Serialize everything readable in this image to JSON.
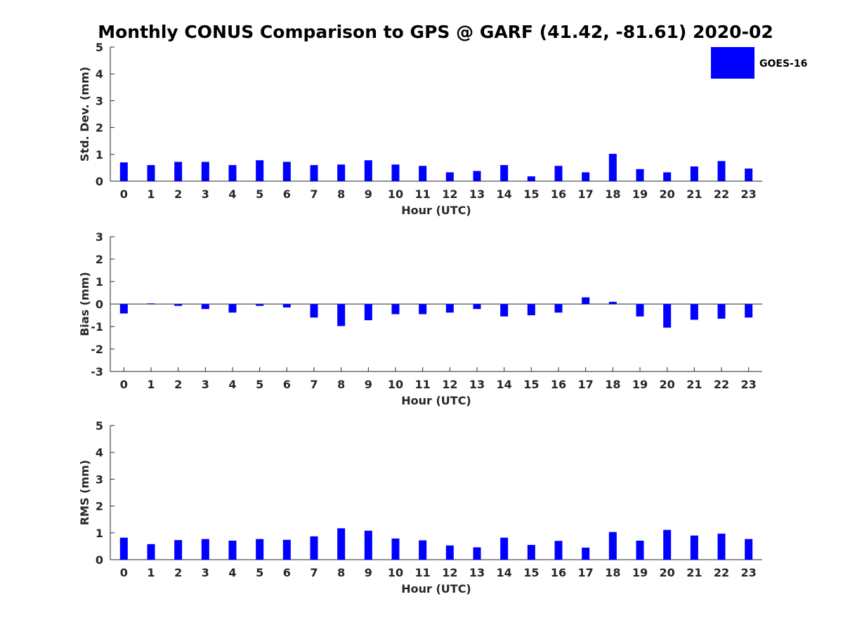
{
  "chart_data": {
    "title": "Monthly CONUS Comparison to GPS @ GARF (41.42, -81.61) 2020-02",
    "type": "bar",
    "color": "#0000ff",
    "legend": {
      "label": "GOES-16",
      "position": "top-right"
    },
    "panels": [
      {
        "id": "stddev",
        "type": "bar",
        "ylabel": "Std. Dev. (mm)",
        "xlabel": "Hour (UTC)",
        "ylim": [
          0,
          5
        ],
        "yticks": [
          0,
          1,
          2,
          3,
          4,
          5
        ],
        "categories": [
          "0",
          "1",
          "2",
          "3",
          "4",
          "5",
          "6",
          "7",
          "8",
          "9",
          "10",
          "11",
          "12",
          "13",
          "14",
          "15",
          "16",
          "17",
          "18",
          "19",
          "20",
          "21",
          "22",
          "23"
        ],
        "series": [
          {
            "name": "GOES-16",
            "values": [
              0.7,
              0.6,
              0.72,
              0.72,
              0.6,
              0.78,
              0.72,
              0.6,
              0.62,
              0.78,
              0.62,
              0.57,
              0.33,
              0.38,
              0.6,
              0.18,
              0.57,
              0.33,
              1.02,
              0.45,
              0.33,
              0.55,
              0.75,
              0.47
            ]
          }
        ]
      },
      {
        "id": "bias",
        "type": "bar",
        "ylabel": "Bias (mm)",
        "xlabel": "Hour (UTC)",
        "ylim": [
          -3,
          3
        ],
        "yticks": [
          -3,
          -2,
          -1,
          0,
          1,
          2,
          3
        ],
        "categories": [
          "0",
          "1",
          "2",
          "3",
          "4",
          "5",
          "6",
          "7",
          "8",
          "9",
          "10",
          "11",
          "12",
          "13",
          "14",
          "15",
          "16",
          "17",
          "18",
          "19",
          "20",
          "21",
          "22",
          "23"
        ],
        "series": [
          {
            "name": "GOES-16",
            "values": [
              -0.42,
              0.03,
              -0.08,
              -0.22,
              -0.38,
              -0.08,
              -0.15,
              -0.6,
              -0.98,
              -0.72,
              -0.45,
              -0.45,
              -0.38,
              -0.22,
              -0.55,
              -0.5,
              -0.38,
              0.3,
              0.1,
              -0.55,
              -1.05,
              -0.7,
              -0.65,
              -0.6
            ]
          }
        ]
      },
      {
        "id": "rms",
        "type": "bar",
        "ylabel": "RMS (mm)",
        "xlabel": "Hour (UTC)",
        "ylim": [
          0,
          5
        ],
        "yticks": [
          0,
          1,
          2,
          3,
          4,
          5
        ],
        "categories": [
          "0",
          "1",
          "2",
          "3",
          "4",
          "5",
          "6",
          "7",
          "8",
          "9",
          "10",
          "11",
          "12",
          "13",
          "14",
          "15",
          "16",
          "17",
          "18",
          "19",
          "20",
          "21",
          "22",
          "23"
        ],
        "series": [
          {
            "name": "GOES-16",
            "values": [
              0.82,
              0.58,
              0.73,
              0.77,
              0.71,
              0.77,
              0.74,
              0.87,
              1.17,
              1.08,
              0.79,
              0.72,
              0.53,
              0.46,
              0.82,
              0.55,
              0.7,
              0.45,
              1.03,
              0.71,
              1.11,
              0.9,
              0.97,
              0.77
            ]
          }
        ]
      }
    ]
  }
}
